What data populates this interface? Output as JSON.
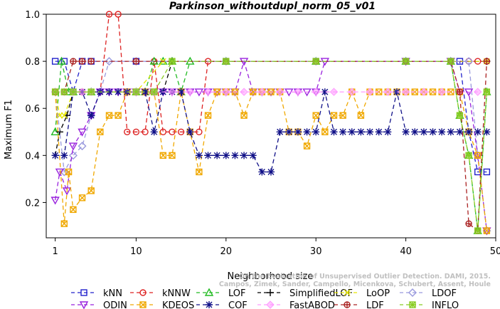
{
  "chart_data": {
    "type": "line",
    "title": "Parkinson_withoutdupl_norm_05_v01",
    "xlabel": "Neighborhood size",
    "ylabel": "Maximum F1",
    "xlim": [
      0,
      50
    ],
    "ylim": [
      0.05,
      1.0
    ],
    "xticks": [
      1,
      10,
      20,
      30,
      40,
      50
    ],
    "yticks": [
      0.2,
      0.4,
      0.6,
      0.8,
      1.0
    ],
    "x_tick_labels": [
      "1",
      "10",
      "20",
      "30",
      "40",
      "50"
    ],
    "y_tick_labels": [
      "0.2",
      "0.4",
      "0.6",
      "0.8",
      "1.0"
    ],
    "watermark": "Campos, Zimek, Sander, Campello, Micenkova, Schubert, Assent, Houle\nOn the Evaluation of Unsupervised Outlier Detection. DAMI, 2015.",
    "legend_position": "bottom",
    "series": [
      {
        "name": "kNN",
        "color": "#2222cc",
        "marker": "square",
        "dash": "6,4",
        "points": [
          [
            1,
            0.8
          ],
          [
            2,
            0.8
          ],
          [
            3,
            0.67
          ],
          [
            4,
            0.8
          ],
          [
            5,
            0.8
          ],
          [
            10,
            0.8
          ],
          [
            20,
            0.8
          ],
          [
            30,
            0.8
          ],
          [
            40,
            0.8
          ],
          [
            45,
            0.8
          ],
          [
            46,
            0.8
          ],
          [
            47,
            0.5
          ],
          [
            48,
            0.33
          ],
          [
            49,
            0.33
          ]
        ]
      },
      {
        "name": "kNNW",
        "color": "#dd2222",
        "marker": "circle",
        "dash": "6,4",
        "points": [
          [
            1,
            0.67
          ],
          [
            2,
            0.67
          ],
          [
            3,
            0.67
          ],
          [
            4,
            0.67
          ],
          [
            5,
            0.67
          ],
          [
            6,
            0.67
          ],
          [
            7,
            1.0
          ],
          [
            8,
            1.0
          ],
          [
            9,
            0.5
          ],
          [
            10,
            0.5
          ],
          [
            11,
            0.5
          ],
          [
            12,
            0.8
          ],
          [
            13,
            0.5
          ],
          [
            14,
            0.5
          ],
          [
            15,
            0.5
          ],
          [
            16,
            0.5
          ],
          [
            17,
            0.5
          ],
          [
            18,
            0.8
          ],
          [
            20,
            0.8
          ],
          [
            30,
            0.8
          ],
          [
            40,
            0.8
          ],
          [
            45,
            0.8
          ],
          [
            47,
            0.8
          ],
          [
            48,
            0.8
          ],
          [
            49,
            0.8
          ]
        ]
      },
      {
        "name": "LOF",
        "color": "#22bb22",
        "marker": "triangle",
        "dash": "6,4",
        "points": [
          [
            1,
            0.5
          ],
          [
            1.7,
            0.8
          ],
          [
            2.5,
            0.67
          ],
          [
            3,
            0.67
          ],
          [
            5,
            0.67
          ],
          [
            10,
            0.67
          ],
          [
            11,
            0.67
          ],
          [
            12,
            0.8
          ],
          [
            13,
            0.8
          ],
          [
            14,
            0.8
          ],
          [
            15,
            0.67
          ],
          [
            16,
            0.8
          ],
          [
            20,
            0.8
          ],
          [
            30,
            0.8
          ],
          [
            40,
            0.8
          ],
          [
            45,
            0.8
          ],
          [
            46,
            0.57
          ],
          [
            47,
            0.4
          ],
          [
            48,
            0.08
          ],
          [
            49,
            0.67
          ]
        ]
      },
      {
        "name": "SimplifiedLOF",
        "color": "#000000",
        "marker": "plus",
        "dash": "6,4",
        "points": [
          [
            1,
            0.4
          ],
          [
            1.5,
            0.5
          ],
          [
            2.3,
            0.57
          ],
          [
            3,
            0.67
          ],
          [
            4,
            0.67
          ],
          [
            5,
            0.67
          ],
          [
            10,
            0.67
          ],
          [
            11,
            0.67
          ],
          [
            12,
            0.67
          ],
          [
            13,
            0.67
          ],
          [
            14,
            0.8
          ],
          [
            20,
            0.8
          ],
          [
            30,
            0.8
          ],
          [
            40,
            0.8
          ],
          [
            45,
            0.8
          ],
          [
            49,
            0.8
          ]
        ]
      },
      {
        "name": "LoOP",
        "color": "#e8e800",
        "marker": "x",
        "dash": "6,4",
        "points": [
          [
            1,
            0.67
          ],
          [
            1.5,
            0.57
          ],
          [
            2,
            0.57
          ],
          [
            3,
            0.67
          ],
          [
            5,
            0.67
          ],
          [
            10,
            0.67
          ],
          [
            13,
            0.8
          ],
          [
            20,
            0.8
          ],
          [
            30,
            0.8
          ],
          [
            40,
            0.8
          ],
          [
            45,
            0.8
          ],
          [
            49,
            0.8
          ]
        ]
      },
      {
        "name": "LDOF",
        "color": "#9999dd",
        "marker": "diamond",
        "dash": "6,4",
        "points": [
          [
            1,
            0.67
          ],
          [
            2,
            0.33
          ],
          [
            3,
            0.4
          ],
          [
            4,
            0.44
          ],
          [
            5,
            0.57
          ],
          [
            6,
            0.67
          ],
          [
            7,
            0.8
          ],
          [
            10,
            0.8
          ],
          [
            20,
            0.8
          ],
          [
            30,
            0.8
          ],
          [
            40,
            0.8
          ],
          [
            45,
            0.8
          ],
          [
            47,
            0.8
          ],
          [
            48,
            0.4
          ],
          [
            49,
            0.08
          ]
        ]
      },
      {
        "name": "ODIN",
        "color": "#9922dd",
        "marker": "invtriangle",
        "dash": "6,4",
        "points": [
          [
            1,
            0.21
          ],
          [
            1.5,
            0.33
          ],
          [
            2.3,
            0.25
          ],
          [
            3,
            0.44
          ],
          [
            4,
            0.5
          ],
          [
            5,
            0.57
          ],
          [
            6,
            0.67
          ],
          [
            7,
            0.67
          ],
          [
            8,
            0.67
          ],
          [
            9,
            0.67
          ],
          [
            10,
            0.67
          ],
          [
            11,
            0.67
          ],
          [
            12,
            0.67
          ],
          [
            13,
            0.67
          ],
          [
            14,
            0.67
          ],
          [
            15,
            0.67
          ],
          [
            16,
            0.67
          ],
          [
            17,
            0.67
          ],
          [
            18,
            0.67
          ],
          [
            19,
            0.67
          ],
          [
            20,
            0.67
          ],
          [
            21,
            0.67
          ],
          [
            22,
            0.8
          ],
          [
            23,
            0.67
          ],
          [
            24,
            0.67
          ],
          [
            25,
            0.67
          ],
          [
            26,
            0.67
          ],
          [
            27,
            0.67
          ],
          [
            28,
            0.67
          ],
          [
            29,
            0.67
          ],
          [
            30,
            0.67
          ],
          [
            31,
            0.8
          ],
          [
            40,
            0.8
          ],
          [
            45,
            0.8
          ],
          [
            46,
            0.67
          ],
          [
            47,
            0.67
          ],
          [
            48,
            0.4
          ],
          [
            49,
            0.08
          ]
        ]
      },
      {
        "name": "KDEOS",
        "color": "#f0a800",
        "marker": "squarex",
        "dash": "6,4",
        "points": [
          [
            1,
            0.67
          ],
          [
            2,
            0.11
          ],
          [
            2.5,
            0.33
          ],
          [
            3,
            0.17
          ],
          [
            4,
            0.22
          ],
          [
            5,
            0.25
          ],
          [
            6,
            0.5
          ],
          [
            7,
            0.57
          ],
          [
            8,
            0.57
          ],
          [
            9,
            0.67
          ],
          [
            10,
            0.67
          ],
          [
            11,
            0.67
          ],
          [
            12,
            0.67
          ],
          [
            13,
            0.4
          ],
          [
            14,
            0.4
          ],
          [
            15,
            0.67
          ],
          [
            16,
            0.5
          ],
          [
            17,
            0.33
          ],
          [
            18,
            0.57
          ],
          [
            19,
            0.67
          ],
          [
            20,
            0.67
          ],
          [
            21,
            0.67
          ],
          [
            22,
            0.57
          ],
          [
            23,
            0.67
          ],
          [
            24,
            0.67
          ],
          [
            25,
            0.67
          ],
          [
            26,
            0.67
          ],
          [
            27,
            0.5
          ],
          [
            28,
            0.5
          ],
          [
            29,
            0.44
          ],
          [
            30,
            0.57
          ],
          [
            31,
            0.5
          ],
          [
            32,
            0.57
          ],
          [
            33,
            0.57
          ],
          [
            34,
            0.67
          ],
          [
            35,
            0.57
          ],
          [
            36,
            0.67
          ],
          [
            37,
            0.67
          ],
          [
            38,
            0.67
          ],
          [
            39,
            0.67
          ],
          [
            40,
            0.67
          ],
          [
            41,
            0.67
          ],
          [
            42,
            0.67
          ],
          [
            43,
            0.67
          ],
          [
            44,
            0.67
          ],
          [
            45,
            0.67
          ],
          [
            46,
            0.67
          ],
          [
            47,
            0.5
          ],
          [
            48,
            0.4
          ],
          [
            49,
            0.08
          ]
        ]
      },
      {
        "name": "COF",
        "color": "#111188",
        "marker": "star",
        "dash": "6,4",
        "points": [
          [
            1,
            0.4
          ],
          [
            2,
            0.4
          ],
          [
            3,
            0.67
          ],
          [
            4,
            0.67
          ],
          [
            5,
            0.57
          ],
          [
            6,
            0.67
          ],
          [
            7,
            0.67
          ],
          [
            8,
            0.67
          ],
          [
            9,
            0.67
          ],
          [
            10,
            0.67
          ],
          [
            11,
            0.67
          ],
          [
            12,
            0.5
          ],
          [
            13,
            0.67
          ],
          [
            14,
            0.67
          ],
          [
            15,
            0.67
          ],
          [
            16,
            0.5
          ],
          [
            17,
            0.4
          ],
          [
            18,
            0.4
          ],
          [
            19,
            0.4
          ],
          [
            20,
            0.4
          ],
          [
            21,
            0.4
          ],
          [
            22,
            0.4
          ],
          [
            23,
            0.4
          ],
          [
            24,
            0.33
          ],
          [
            25,
            0.33
          ],
          [
            26,
            0.5
          ],
          [
            27,
            0.5
          ],
          [
            28,
            0.5
          ],
          [
            29,
            0.5
          ],
          [
            30,
            0.5
          ],
          [
            31,
            0.67
          ],
          [
            32,
            0.5
          ],
          [
            33,
            0.5
          ],
          [
            34,
            0.5
          ],
          [
            35,
            0.5
          ],
          [
            36,
            0.5
          ],
          [
            37,
            0.5
          ],
          [
            38,
            0.5
          ],
          [
            39,
            0.67
          ],
          [
            40,
            0.5
          ],
          [
            41,
            0.5
          ],
          [
            42,
            0.5
          ],
          [
            43,
            0.5
          ],
          [
            44,
            0.5
          ],
          [
            45,
            0.5
          ],
          [
            46,
            0.5
          ],
          [
            47,
            0.5
          ],
          [
            48,
            0.5
          ],
          [
            49,
            0.5
          ]
        ]
      },
      {
        "name": "FastABOD",
        "color": "#ff99ff",
        "marker": "diamondfill",
        "dash": "6,4",
        "points": [
          [
            1,
            0.67
          ],
          [
            2,
            0.67
          ],
          [
            3,
            0.67
          ],
          [
            4,
            0.67
          ],
          [
            5,
            0.67
          ],
          [
            10,
            0.67
          ],
          [
            12,
            0.67
          ],
          [
            14,
            0.67
          ],
          [
            16,
            0.67
          ],
          [
            18,
            0.67
          ],
          [
            20,
            0.67
          ],
          [
            22,
            0.67
          ],
          [
            24,
            0.67
          ],
          [
            26,
            0.67
          ],
          [
            28,
            0.67
          ],
          [
            30,
            0.67
          ],
          [
            32,
            0.67
          ],
          [
            34,
            0.67
          ],
          [
            36,
            0.67
          ],
          [
            38,
            0.67
          ],
          [
            40,
            0.67
          ],
          [
            42,
            0.67
          ],
          [
            44,
            0.67
          ],
          [
            46,
            0.67
          ],
          [
            48,
            0.67
          ]
        ]
      },
      {
        "name": "LDF",
        "color": "#aa2222",
        "marker": "circleplus",
        "dash": "6,4",
        "points": [
          [
            1,
            0.67
          ],
          [
            2,
            0.67
          ],
          [
            3,
            0.8
          ],
          [
            4,
            0.8
          ],
          [
            5,
            0.8
          ],
          [
            10,
            0.8
          ],
          [
            20,
            0.8
          ],
          [
            30,
            0.8
          ],
          [
            40,
            0.8
          ],
          [
            45,
            0.8
          ],
          [
            46,
            0.67
          ],
          [
            47,
            0.11
          ],
          [
            48,
            0.08
          ],
          [
            49,
            0.8
          ]
        ]
      },
      {
        "name": "INFLO",
        "color": "#88cc22",
        "marker": "starsquare",
        "dash": "6,4",
        "points": [
          [
            1,
            0.67
          ],
          [
            2,
            0.67
          ],
          [
            3,
            0.67
          ],
          [
            5,
            0.67
          ],
          [
            10,
            0.67
          ],
          [
            12,
            0.67
          ],
          [
            14,
            0.8
          ],
          [
            20,
            0.8
          ],
          [
            30,
            0.8
          ],
          [
            40,
            0.8
          ],
          [
            45,
            0.8
          ],
          [
            46,
            0.57
          ],
          [
            47,
            0.4
          ],
          [
            48,
            0.08
          ],
          [
            49,
            0.67
          ]
        ]
      }
    ]
  }
}
